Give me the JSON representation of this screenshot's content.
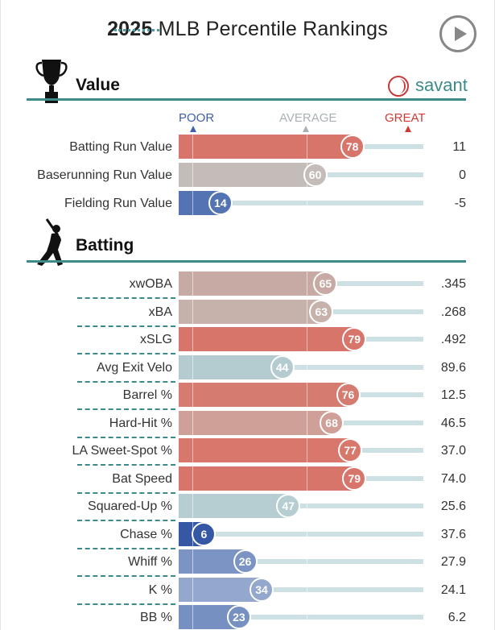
{
  "header": {
    "year": "2025",
    "title_rest": "MLB Percentile Rankings",
    "play_icon": "play-circle-icon"
  },
  "brand": {
    "name": "savant",
    "color": "#3d8a8a",
    "icon": "baseball-icon"
  },
  "legend": {
    "poor": "POOR",
    "average": "AVERAGE",
    "great": "GREAT",
    "colors": {
      "poor": "#3f5fa8",
      "average": "#a8b2b5",
      "great": "#cc3b34"
    }
  },
  "sections": {
    "value": {
      "title": "Value",
      "icon": "trophy-icon",
      "rows": [
        {
          "label": "Batting Run Value",
          "pct": 78,
          "value": "11",
          "color": "#d8756b"
        },
        {
          "label": "Baserunning Run Value",
          "pct": 60,
          "value": "0",
          "color": "#c4bcb9"
        },
        {
          "label": "Fielding Run Value",
          "pct": 14,
          "value": "-5",
          "color": "#5373b2"
        }
      ]
    },
    "batting": {
      "title": "Batting",
      "icon": "batter-icon",
      "rows": [
        {
          "label": "xwOBA",
          "pct": 65,
          "value": ".345",
          "color": "#c7aaa3"
        },
        {
          "label": "xBA",
          "pct": 63,
          "value": ".268",
          "color": "#c7b1ab"
        },
        {
          "label": "xSLG",
          "pct": 79,
          "value": ".492",
          "color": "#d8756b"
        },
        {
          "label": "Avg Exit Velo",
          "pct": 44,
          "value": "89.6",
          "color": "#b4ccd0"
        },
        {
          "label": "Barrel %",
          "pct": 76,
          "value": "12.5",
          "color": "#d67b70"
        },
        {
          "label": "Hard-Hit %",
          "pct": 68,
          "value": "46.5",
          "color": "#cfa097"
        },
        {
          "label": "LA Sweet-Spot %",
          "pct": 77,
          "value": "37.0",
          "color": "#d8776c"
        },
        {
          "label": "Bat Speed",
          "pct": 79,
          "value": "74.0",
          "color": "#d8756b"
        },
        {
          "label": "Squared-Up %",
          "pct": 47,
          "value": "25.6",
          "color": "#b6cdd1"
        },
        {
          "label": "Chase %",
          "pct": 6,
          "value": "37.6",
          "color": "#3557a4"
        },
        {
          "label": "Whiff %",
          "pct": 26,
          "value": "27.9",
          "color": "#7c94c3"
        },
        {
          "label": "K %",
          "pct": 34,
          "value": "24.1",
          "color": "#93a8cc"
        },
        {
          "label": "BB %",
          "pct": 23,
          "value": "6.2",
          "color": "#7690c1"
        }
      ]
    }
  }
}
